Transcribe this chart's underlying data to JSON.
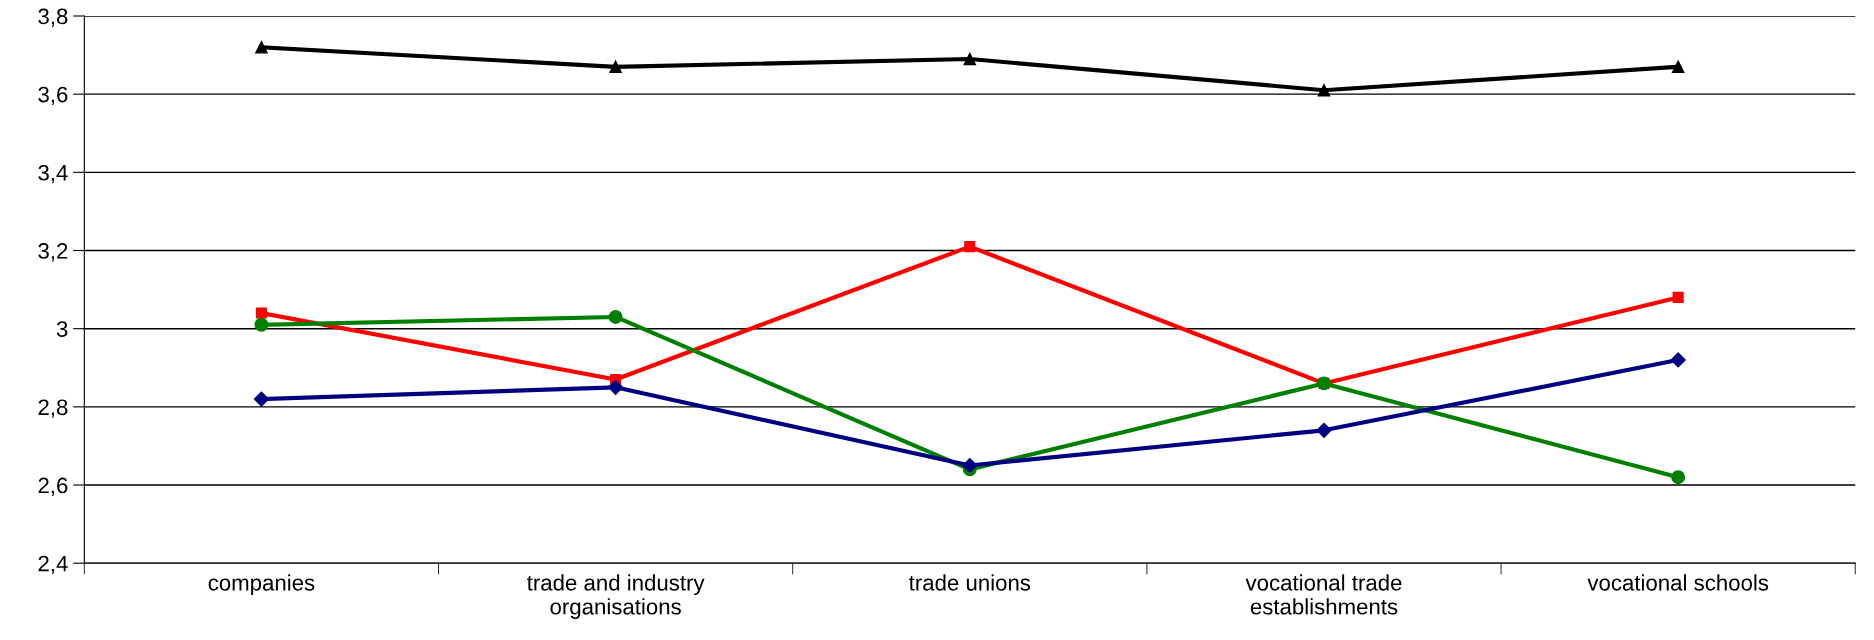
{
  "chart_data": {
    "type": "line",
    "categories": [
      "companies",
      "trade and industry\norganisations",
      "trade unions",
      "vocational trade\nestablishments",
      "vocational schools"
    ],
    "series": [
      {
        "color": "#000000",
        "marker": "triangle",
        "values": [
          3.72,
          3.67,
          3.69,
          3.61,
          3.67
        ]
      },
      {
        "color": "#ff0000",
        "marker": "square",
        "values": [
          3.04,
          2.87,
          3.21,
          2.86,
          3.08
        ]
      },
      {
        "color": "#008000",
        "marker": "circle",
        "values": [
          3.01,
          3.03,
          2.64,
          2.86,
          2.62
        ]
      },
      {
        "color": "#000080",
        "marker": "diamond",
        "values": [
          2.82,
          2.85,
          2.65,
          2.74,
          2.92
        ]
      }
    ],
    "ylim": [
      2.4,
      3.8
    ],
    "yticks": [
      {
        "value": 2.4,
        "label": "2,4"
      },
      {
        "value": 2.6,
        "label": "2,6"
      },
      {
        "value": 2.8,
        "label": "2,8"
      },
      3,
      {
        "value": 3.2,
        "label": "3,2"
      },
      {
        "value": 3.4,
        "label": "3,4"
      },
      {
        "value": 3.6,
        "label": "3,6"
      },
      {
        "value": 3.8,
        "label": "3,8"
      }
    ],
    "grid": "y",
    "line_style": "solid"
  }
}
